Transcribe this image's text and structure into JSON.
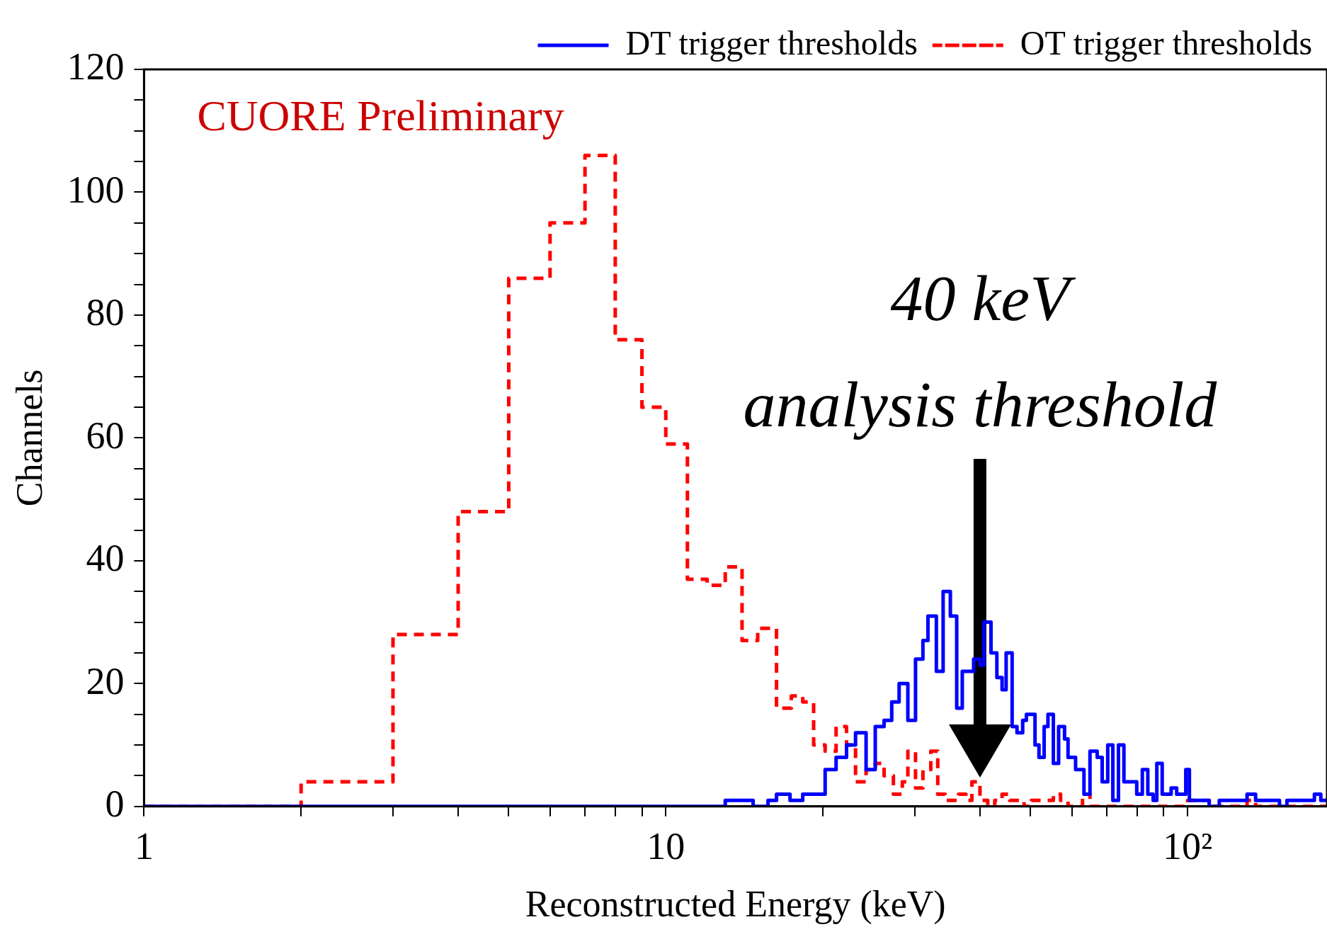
{
  "chart_data": {
    "type": "step",
    "xlabel": "Reconstructed Energy (keV)",
    "ylabel": "Channels",
    "log": "x",
    "grid": false,
    "legend": "top right",
    "xlim": [
      1,
      185
    ],
    "xticks": [
      1,
      {
        "value": 2,
        "label": null
      },
      {
        "value": 3,
        "label": null
      },
      {
        "value": 4,
        "label": null
      },
      {
        "value": 5,
        "label": null
      },
      {
        "value": 6,
        "label": null
      },
      {
        "value": 7,
        "label": null
      },
      {
        "value": 8,
        "label": null
      },
      {
        "value": 9,
        "label": null
      },
      10,
      {
        "value": 20,
        "label": null
      },
      {
        "value": 30,
        "label": null
      },
      {
        "value": 40,
        "label": null
      },
      {
        "value": 50,
        "label": null
      },
      {
        "value": 60,
        "label": null
      },
      {
        "value": 70,
        "label": null
      },
      {
        "value": 80,
        "label": null
      },
      {
        "value": 90,
        "label": null
      },
      {
        "value": 100,
        "label": "10²"
      }
    ],
    "ylim": [
      0,
      120
    ],
    "yticks": [
      0,
      {
        "value": 5,
        "label": null
      },
      {
        "value": 10,
        "label": null
      },
      {
        "value": 15,
        "label": null
      },
      20,
      {
        "value": 25,
        "label": null
      },
      {
        "value": 30,
        "label": null
      },
      {
        "value": 35,
        "label": null
      },
      40,
      {
        "value": 45,
        "label": null
      },
      {
        "value": 50,
        "label": null
      },
      {
        "value": 55,
        "label": null
      },
      60,
      {
        "value": 65,
        "label": null
      },
      {
        "value": 70,
        "label": null
      },
      {
        "value": 75,
        "label": null
      },
      80,
      {
        "value": 85,
        "label": null
      },
      {
        "value": 90,
        "label": null
      },
      {
        "value": 95,
        "label": null
      },
      100,
      {
        "value": 105,
        "label": null
      },
      {
        "value": 110,
        "label": null
      },
      {
        "value": 115,
        "label": null
      },
      120
    ],
    "series": [
      {
        "name": "DT trigger thresholds",
        "color": "#0000ff",
        "line_style": "solid",
        "x": [
          1,
          13,
          14.7,
          15.7,
          16.3,
          17.3,
          18.3,
          20.2,
          21.2,
          22.2,
          23.1,
          24.2,
          25.2,
          26.2,
          27.1,
          28,
          29.1,
          30.1,
          31.1,
          31.8,
          33,
          34,
          35.1,
          36.1,
          37,
          38.9,
          40,
          40.7,
          42,
          43.1,
          44.1,
          44.9,
          46.1,
          47.1,
          48.3,
          49.1,
          51,
          51.9,
          53.1,
          54,
          55.3,
          56.6,
          58.1,
          59,
          61,
          63.3,
          65,
          67.1,
          68.6,
          70.3,
          71.9,
          73.7,
          75.5,
          79.9,
          81.9,
          83.9,
          85.9,
          87.3,
          89.4,
          93,
          95.3,
          99.2,
          100.8,
          110,
          115,
          130,
          135,
          150,
          155,
          175,
          180,
          185
        ],
        "values": [
          0,
          1,
          0,
          1,
          2,
          1,
          2,
          6,
          8,
          10,
          12,
          6,
          13,
          14,
          17,
          20,
          14,
          24,
          27,
          31,
          22,
          35,
          31,
          16,
          22,
          24,
          23,
          30,
          25,
          21,
          19,
          25,
          13,
          12,
          14,
          15,
          10,
          8,
          13,
          15,
          7,
          13,
          11,
          8,
          6,
          2,
          9,
          8,
          4,
          10,
          1,
          10,
          4,
          2,
          6,
          2,
          1,
          7,
          2,
          3,
          2,
          6,
          1,
          0,
          1,
          2,
          1,
          0,
          1,
          2,
          1,
          1
        ]
      },
      {
        "name": "OT trigger thresholds",
        "color": "#ff0000",
        "line_style": "dashed",
        "x": [
          1,
          2,
          3,
          4,
          5,
          6,
          7,
          8,
          9,
          10,
          11,
          12,
          13,
          14,
          15,
          16.3,
          17.4,
          18.3,
          19.2,
          20.2,
          21.2,
          22.2,
          23.1,
          24.2,
          25.2,
          26.2,
          27.3,
          28.4,
          29.1,
          30.1,
          31.1,
          32.2,
          33.2,
          34.3,
          35.3,
          36.4,
          37.6,
          38.6,
          40,
          41.4,
          42.7,
          44.1,
          45.6,
          47.1,
          48.6,
          50.2,
          53.6,
          55.3,
          57.1,
          59,
          62.9,
          65,
          100,
          110,
          130,
          135,
          185
        ],
        "values": [
          0,
          4,
          28,
          48,
          86,
          95,
          106,
          76,
          65,
          59,
          37,
          36,
          39,
          27,
          29,
          16,
          18,
          17,
          10,
          9,
          13,
          10,
          4,
          6,
          7,
          5,
          2,
          4,
          9,
          3,
          6,
          9,
          2,
          1,
          1,
          2,
          1,
          4,
          1,
          0,
          1,
          2,
          1,
          1,
          0,
          1,
          1,
          2,
          1,
          0,
          2,
          0,
          1,
          0,
          1,
          0,
          0
        ]
      }
    ],
    "ref_lines": [
      {
        "axis": "x",
        "value": 40,
        "label": "40 keV\nanalysis threshold",
        "color": "#000000"
      }
    ],
    "annotations": [
      "CUORE Preliminary"
    ]
  }
}
